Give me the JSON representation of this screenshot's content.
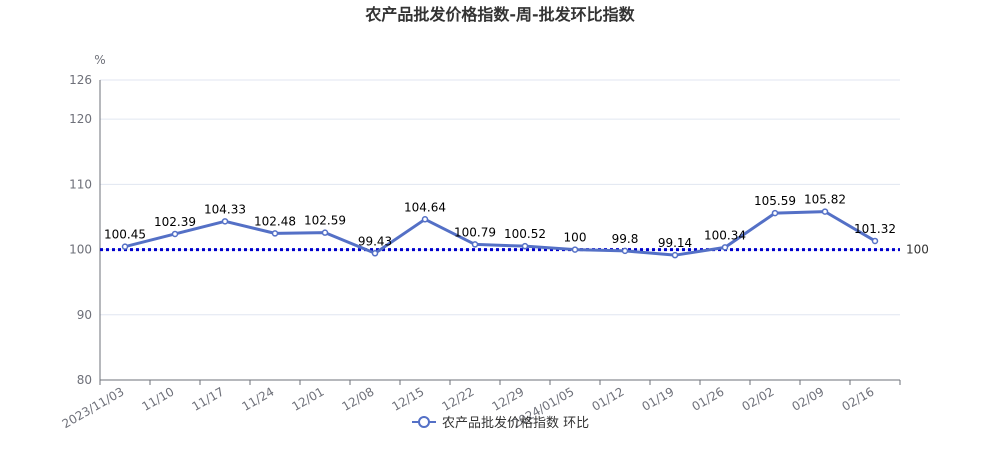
{
  "title": "农产品批发价格指数-周-批发环比指数",
  "colors": {
    "series": "#5470c6",
    "reference": "#0000cc",
    "grid": "#e0e6f1",
    "axis": "#6e7079"
  },
  "chart_data": {
    "type": "line",
    "title": "农产品批发价格指数-周-批发环比指数",
    "ylabel": "%",
    "xlabel": "",
    "ylim": [
      80,
      126
    ],
    "yticks": [
      80,
      90,
      100,
      110,
      120,
      126
    ],
    "grid": true,
    "legend_position": "bottom-center",
    "categories": [
      "2023/11/03",
      "11/10",
      "11/17",
      "11/24",
      "12/01",
      "12/08",
      "12/15",
      "12/22",
      "12/29",
      "2024/01/05",
      "01/12",
      "01/19",
      "01/26",
      "02/02",
      "02/09",
      "02/16"
    ],
    "series": [
      {
        "name": "农产品批发价格指数 环比",
        "values": [
          100.45,
          102.39,
          104.33,
          102.48,
          102.59,
          99.43,
          104.64,
          100.79,
          100.52,
          100,
          99.8,
          99.14,
          100.34,
          105.59,
          105.82,
          101.32
        ],
        "labels": [
          "100.45",
          "102.39",
          "104.33",
          "102.48",
          "102.59",
          "99.43",
          "104.64",
          "100.79",
          "100.52",
          "100",
          "99.8",
          "99.14",
          "100.34",
          "105.59",
          "105.82",
          "101.32"
        ]
      }
    ],
    "reference_line": {
      "value": 100,
      "label": "100"
    }
  }
}
